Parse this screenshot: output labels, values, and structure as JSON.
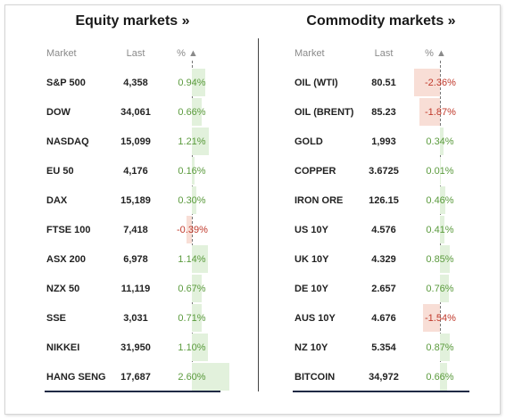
{
  "equity": {
    "title": "Equity markets »",
    "headers": {
      "market": "Market",
      "last": "Last",
      "pct": "% ▲"
    },
    "rows": [
      {
        "market": "S&P 500",
        "last": "4,358",
        "pct": "0.94%",
        "change": 0.94
      },
      {
        "market": "DOW",
        "last": "34,061",
        "pct": "0.66%",
        "change": 0.66
      },
      {
        "market": "NASDAQ",
        "last": "15,099",
        "pct": "1.21%",
        "change": 1.21
      },
      {
        "market": "EU 50",
        "last": "4,176",
        "pct": "0.16%",
        "change": 0.16
      },
      {
        "market": "DAX",
        "last": "15,189",
        "pct": "0.30%",
        "change": 0.3
      },
      {
        "market": "FTSE 100",
        "last": "7,418",
        "pct": "-0.39%",
        "change": -0.39
      },
      {
        "market": "ASX 200",
        "last": "6,978",
        "pct": "1.14%",
        "change": 1.14
      },
      {
        "market": "NZX 50",
        "last": "11,119",
        "pct": "0.67%",
        "change": 0.67
      },
      {
        "market": "SSE",
        "last": "3,031",
        "pct": "0.71%",
        "change": 0.71
      },
      {
        "market": "NIKKEI",
        "last": "31,950",
        "pct": "1.10%",
        "change": 1.1
      },
      {
        "market": "HANG SENG",
        "last": "17,687",
        "pct": "2.60%",
        "change": 2.6
      }
    ]
  },
  "commodity": {
    "title": "Commodity markets »",
    "headers": {
      "market": "Market",
      "last": "Last",
      "pct": "% ▲"
    },
    "rows": [
      {
        "market": "OIL (WTI)",
        "last": "80.51",
        "pct": "-2.36%",
        "change": -2.36
      },
      {
        "market": "OIL (BRENT)",
        "last": "85.23",
        "pct": "-1.87%",
        "change": -1.87
      },
      {
        "market": "GOLD",
        "last": "1,993",
        "pct": "0.34%",
        "change": 0.34
      },
      {
        "market": "COPPER",
        "last": "3.6725",
        "pct": "0.01%",
        "change": 0.01
      },
      {
        "market": "IRON ORE",
        "last": "126.15",
        "pct": "0.46%",
        "change": 0.46
      },
      {
        "market": "US 10Y",
        "last": "4.576",
        "pct": "0.41%",
        "change": 0.41
      },
      {
        "market": "UK 10Y",
        "last": "4.329",
        "pct": "0.85%",
        "change": 0.85
      },
      {
        "market": "DE 10Y",
        "last": "2.657",
        "pct": "0.76%",
        "change": 0.76
      },
      {
        "market": "AUS 10Y",
        "last": "4.676",
        "pct": "-1.54%",
        "change": -1.54
      },
      {
        "market": "NZ 10Y",
        "last": "5.354",
        "pct": "0.87%",
        "change": 0.87
      },
      {
        "market": "BITCOIN",
        "last": "34,972",
        "pct": "0.66%",
        "change": 0.66
      }
    ]
  },
  "colors": {
    "positive_text": "#5a9a3c",
    "negative_text": "#c0392b",
    "positive_bar": "#e2f1dc",
    "negative_bar": "#f8ded6",
    "bottom_rule": "#1f2a44"
  }
}
